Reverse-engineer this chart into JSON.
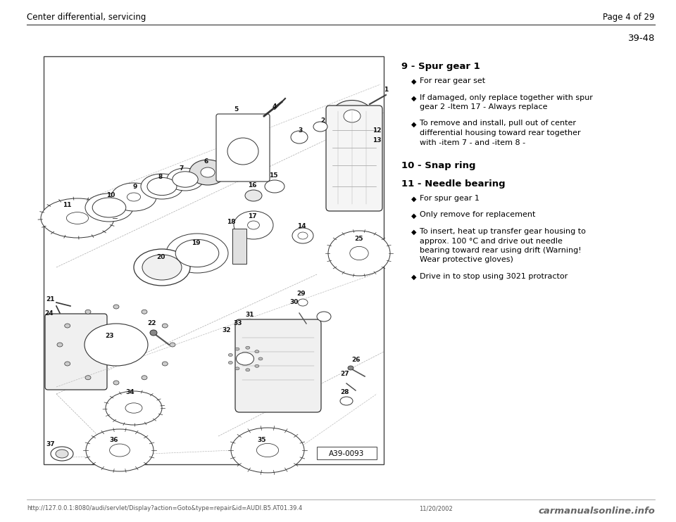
{
  "bg_color": "#ffffff",
  "header_left": "Center differential, servicing",
  "header_right": "Page 4 of 29",
  "page_number": "39-48",
  "section_title_9": "9 - Spur gear 1",
  "bullets_9": [
    [
      "For rear gear set"
    ],
    [
      "If damaged, only replace together with spur",
      "gear 2 -Item 17 - Always replace"
    ],
    [
      "To remove and install, pull out of center",
      "differential housing toward rear together",
      "with -item 7 - and -item 8 -"
    ]
  ],
  "section_title_10": "10 - Snap ring",
  "section_title_11": "11 - Needle bearing",
  "bullets_11": [
    [
      "For spur gear 1"
    ],
    [
      "Only remove for replacement"
    ],
    [
      "To insert, heat up transfer gear housing to",
      "approx. 100 °C and drive out needle",
      "bearing toward rear using drift (Warning!",
      "Wear protective gloves)"
    ],
    [
      "Drive in to stop using 3021 protractor"
    ]
  ],
  "footer_url": "http://127.0.0.1:8080/audi/servlet/Display?action=Goto&type=repair&id=AUDI.B5.AT01.39.4",
  "footer_date": "11/20/2002",
  "footer_watermark": "carmanualsonline.info",
  "diagram_label": "A39-0093",
  "font_color": "#000000",
  "header_font_size": 8.5,
  "body_font_size": 8.0,
  "section_bold_size": 9.5,
  "page_num_font_size": 9.5
}
